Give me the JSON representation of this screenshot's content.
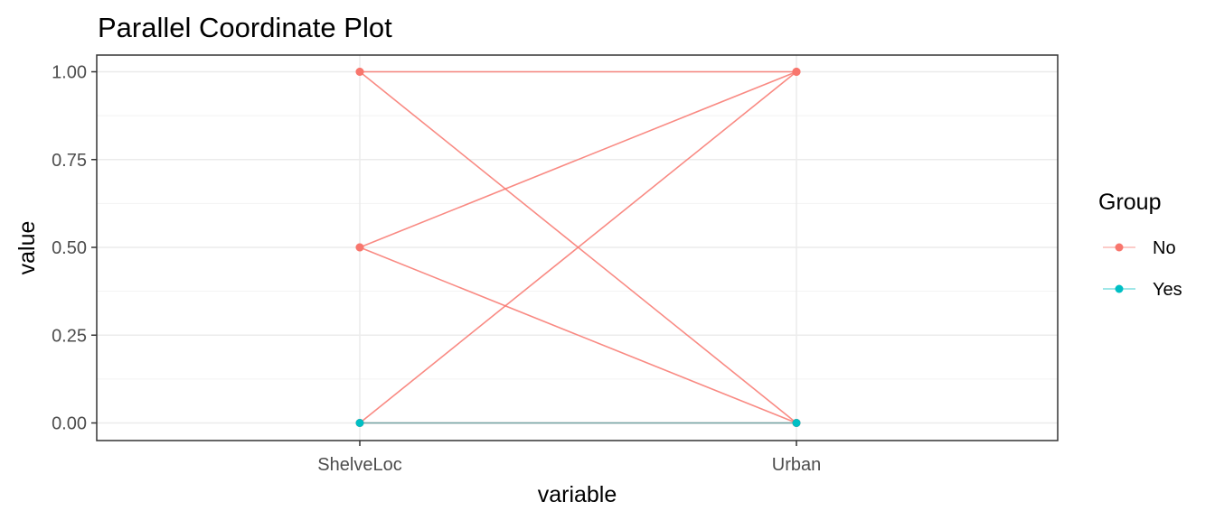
{
  "chart_data": {
    "type": "line",
    "title": "Parallel Coordinate Plot",
    "xlabel": "variable",
    "ylabel": "value",
    "categories": [
      "ShelveLoc",
      "Urban"
    ],
    "ylim": [
      0,
      1
    ],
    "yticks": [
      0,
      0.25,
      0.5,
      0.75,
      1
    ],
    "ytick_labels": [
      "0.00",
      "0.25",
      "0.50",
      "0.75",
      "1.00"
    ],
    "grid": true,
    "legend": {
      "title": "Group",
      "position": "right",
      "entries": [
        {
          "name": "No",
          "color": "#F8766D"
        },
        {
          "name": "Yes",
          "color": "#00BFC4"
        }
      ]
    },
    "series": [
      {
        "group": "No",
        "values": [
          1.0,
          1.0
        ]
      },
      {
        "group": "No",
        "values": [
          1.0,
          0.0
        ]
      },
      {
        "group": "No",
        "values": [
          0.5,
          1.0
        ]
      },
      {
        "group": "No",
        "values": [
          0.5,
          0.0
        ]
      },
      {
        "group": "No",
        "values": [
          0.0,
          1.0
        ]
      },
      {
        "group": "No",
        "values": [
          0.0,
          0.0
        ]
      },
      {
        "group": "Yes",
        "values": [
          0.0,
          0.0
        ]
      }
    ]
  }
}
